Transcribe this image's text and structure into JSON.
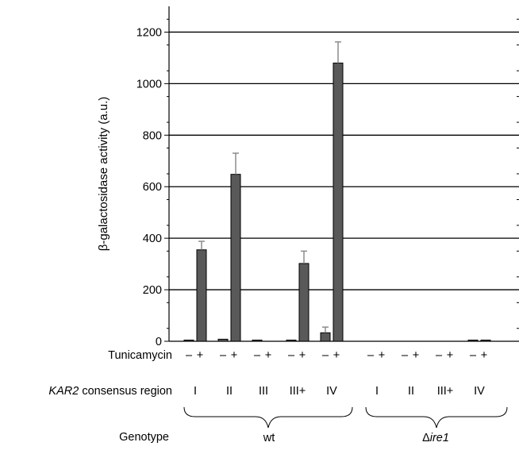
{
  "chart_data": {
    "type": "bar",
    "title": "",
    "xlabel": "",
    "ylabel": "β-galactosidase activity (a.u.)",
    "ylim": [
      0,
      1300
    ],
    "yticks": [
      0,
      200,
      400,
      600,
      800,
      1000,
      1200
    ],
    "grid": true,
    "bar_color": "#595959",
    "error_color": "#8c8c8c",
    "bars": [
      {
        "genotype": "wt",
        "region": "I",
        "tunicamycin": "–",
        "value": 3,
        "error": 0
      },
      {
        "genotype": "wt",
        "region": "I",
        "tunicamycin": "+",
        "value": 355,
        "error": 33
      },
      {
        "genotype": "wt",
        "region": "II",
        "tunicamycin": "–",
        "value": 8,
        "error": 0
      },
      {
        "genotype": "wt",
        "region": "II",
        "tunicamycin": "+",
        "value": 648,
        "error": 82
      },
      {
        "genotype": "wt",
        "region": "III",
        "tunicamycin": "–",
        "value": 2,
        "error": 0
      },
      {
        "genotype": "wt",
        "region": "III",
        "tunicamycin": "+",
        "value": 0,
        "error": 0
      },
      {
        "genotype": "wt",
        "region": "III+",
        "tunicamycin": "–",
        "value": 3,
        "error": 0
      },
      {
        "genotype": "wt",
        "region": "III+",
        "tunicamycin": "+",
        "value": 302,
        "error": 48
      },
      {
        "genotype": "wt",
        "region": "IV",
        "tunicamycin": "–",
        "value": 33,
        "error": 22
      },
      {
        "genotype": "wt",
        "region": "IV",
        "tunicamycin": "+",
        "value": 1080,
        "error": 82
      },
      {
        "genotype": "Δire1",
        "region": "I",
        "tunicamycin": "–",
        "value": 0,
        "error": 0
      },
      {
        "genotype": "Δire1",
        "region": "I",
        "tunicamycin": "+",
        "value": 0,
        "error": 0
      },
      {
        "genotype": "Δire1",
        "region": "II",
        "tunicamycin": "–",
        "value": 0,
        "error": 0
      },
      {
        "genotype": "Δire1",
        "region": "II",
        "tunicamycin": "+",
        "value": 0,
        "error": 0
      },
      {
        "genotype": "Δire1",
        "region": "III+",
        "tunicamycin": "–",
        "value": 0,
        "error": 0
      },
      {
        "genotype": "Δire1",
        "region": "III+",
        "tunicamycin": "+",
        "value": 0,
        "error": 0
      },
      {
        "genotype": "Δire1",
        "region": "IV",
        "tunicamycin": "–",
        "value": 3,
        "error": 0
      },
      {
        "genotype": "Δire1",
        "region": "IV",
        "tunicamycin": "+",
        "value": 3,
        "error": 0
      }
    ],
    "row_labels": {
      "tunicamycin": "Tunicamycin",
      "region_italic": "KAR2",
      "region_rest": " consensus region",
      "genotype": "Genotype"
    },
    "tunicamycin_marks": [
      "–",
      "+"
    ],
    "regions": [
      "I",
      "II",
      "III",
      "III+",
      "IV",
      "I",
      "II",
      "III+",
      "IV"
    ],
    "genotypes": [
      {
        "prefix": "",
        "italic": "wt"
      },
      {
        "prefix": "Δ",
        "italic": "ire1"
      }
    ]
  }
}
